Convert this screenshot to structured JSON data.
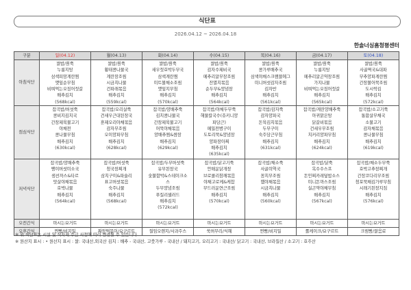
{
  "title": "식단표",
  "period": "2026.04.12 ~ 2026.04.18",
  "center_name": "한솔너싱홈청평센터",
  "colors": {
    "sunday": "#e03030",
    "saturday": "#3050c0",
    "header_bg": "#d9d9d9"
  },
  "header": {
    "label": "구분",
    "days": [
      "일(04.12)",
      "월(04.13)",
      "화(04.14)",
      "수(04.15)",
      "목(04.16)",
      "금(04.17)",
      "토(04.18)"
    ]
  },
  "rows": {
    "breakfast": {
      "label": "아침식단",
      "days": [
        [
          "쌀밥/흰죽",
          "누룽지탕",
          "삼색피망계란찜",
          "깻잎순무침",
          "비벼먹는오징어젓갈",
          "배추김치",
          "(568kcal)"
        ],
        [
          "쌀밥/흰죽",
          "황태콩나물국",
          "계란장조림",
          "시금치나물",
          "건파래볶음",
          "배추김치",
          "(559kcal)"
        ],
        [
          "쌀밥/흰죽",
          "새우젓호박두부국",
          "삼색계란찜",
          "미트볼채소조림",
          "깻잎지무침",
          "배추김치",
          "(570kcal)"
        ],
        [
          "쌀밥/흰죽",
          "감자수제비국",
          "메추리알무장조림",
          "잔멸치볶음",
          "순두부&양념장",
          "배추김치",
          "(564kcal)"
        ],
        [
          "쌀밥/흰죽",
          "콩가루배추국",
          "삼색야채스크램블에그",
          "미니버섯감자조림",
          "김자반",
          "배추김치",
          "(561kcal)"
        ],
        [
          "쌀밥/흰죽",
          "누룽지탕",
          "메추리알곤약장조림",
          "가지나물",
          "비벼먹는오징어젓갈",
          "배추김치",
          "(565kcal)"
        ],
        [
          "쌀밥/흰죽",
          "사골떡국&대파",
          "부추양파계란찜",
          "간장볼어묵조림",
          "도시락김",
          "배추김치",
          "(572kcal)"
        ]
      ]
    },
    "lunch": {
      "label": "점심식단",
      "days": [
        [
          "잡곡밥/버섯죽",
          "콩비지김치국",
          "간장제육불고기",
          "야채전",
          "콩나물무침",
          "배추김치",
          "(630kcal)"
        ],
        [
          "잡곡밥/오리살죽",
          "건새우근대된장국",
          "훈제오리야채볶음",
          "감자무조림",
          "오이양파무침",
          "배추김치",
          "(628kcal)"
        ],
        [
          "잡곡밥/양배추죽",
          "김치콩나물국",
          "간장제육불고기",
          "어묵야채볶음",
          "양배추찜&쌈장",
          "배추김치",
          "(629kcal)"
        ],
        [
          "잡곡밥/야채두부죽",
          "해물칼국수(쥬키니양",
          "파당근)",
          "메밀전병구이",
          "도토리묵&양념장",
          "양파장아찌",
          "배추김치",
          "(635kcal)"
        ],
        [
          "잡곡밥/감자죽",
          "감자양파국",
          "돈육김치볶음",
          "두부구이",
          "숙주당근무침",
          "배추김치",
          "(631kcal)"
        ],
        [
          "잡곡밥/계란양배추죽",
          "아귀맑은탕",
          "닭갈비볶음",
          "건새우무조림",
          "치커리양파무침",
          "배추김치",
          "(624kcal)"
        ],
        [
          "잡곡밥/소고기죽",
          "통합살무채국",
          "소불고기",
          "감자채볶음",
          "콩나물무침",
          "배추김치",
          "(619kcal)"
        ]
      ]
    },
    "dinner": {
      "label": "저녁식단",
      "days": [
        [
          "잡곡밥/양배추죽",
          "팽이버섯미소국",
          "생선까스&타르",
          "맛살야채볶음",
          "호박나물",
          "배추김치",
          "(564kcal)"
        ],
        [
          "잡곡밥/버섯죽",
          "청국장찌개",
          "삼치구이&파슬리",
          "표고버섯볶음",
          "숙주나물",
          "배추김치",
          "(568kcal)"
        ],
        [
          "잡곡밥/두부버섯죽",
          "유부된장국",
          "숯불함박&스테이크소",
          "스",
          "두부양념조림",
          "푸질리샐러드",
          "배추김치",
          "(572kcal)"
        ],
        [
          "잡곡밥/닭고기죽",
          "안매운닭개장",
          "브로콜리참깨볶음",
          "야채고로케&케찹",
          "부드러운연근조림",
          "배추김치",
          "(570kcal)"
        ],
        [
          "잡곡밥/채소죽",
          "사골미역국",
          "꽁치무조림",
          "햄야채볶음",
          "시금치나물",
          "배추김치",
          "(560kcal)"
        ],
        [
          "잡곡밥/닭죽",
          "옥수수스프",
          "돈민찌카레덮밥소스",
          "미니돈까스조림",
          "실곤약야채무침",
          "배추김치",
          "(567kcal)"
        ],
        [
          "잡곡밥/채소두부죽",
          "호박고추장찌개",
          "간장코다리무조림",
          "청포묵채김가루무침",
          "시래기된장지짐",
          "배추김치",
          "(576kcal)"
        ]
      ]
    },
    "am_snack": {
      "label": "오전간식",
      "days": [
        "마시는요거트",
        "마시는요거트",
        "마시는요거트",
        "마시는요거트",
        "마시는요거트",
        "마시는요거트",
        "마시는요거트"
      ]
    },
    "pm_snack": {
      "label": "오후간식",
      "days": [
        "찐빵/비지밀",
        "짜장떡볶이/요구르트",
        "절임오렌지/사과주스",
        "쑥버무리/식혜",
        "찐빵/비지밀",
        "롤케이크/요구르트",
        "크림빵/쌀음료"
      ]
    }
  },
  "notes": [
    "※ 위 식단표는 시설 및 식자재 수급 사정에 따라 변경될 수 있습니다.",
    "※ 원산지 표시 : • 원산지 표시 : 쌀: 국내산,외국산 김치 : 배추 - 국내산, 고춧가루 - 국내산 / 돼지고기, 오리고기 : 국내산/ 닭고기 : 국내산, 브라질산 / 소고기 : 호주산"
  ]
}
